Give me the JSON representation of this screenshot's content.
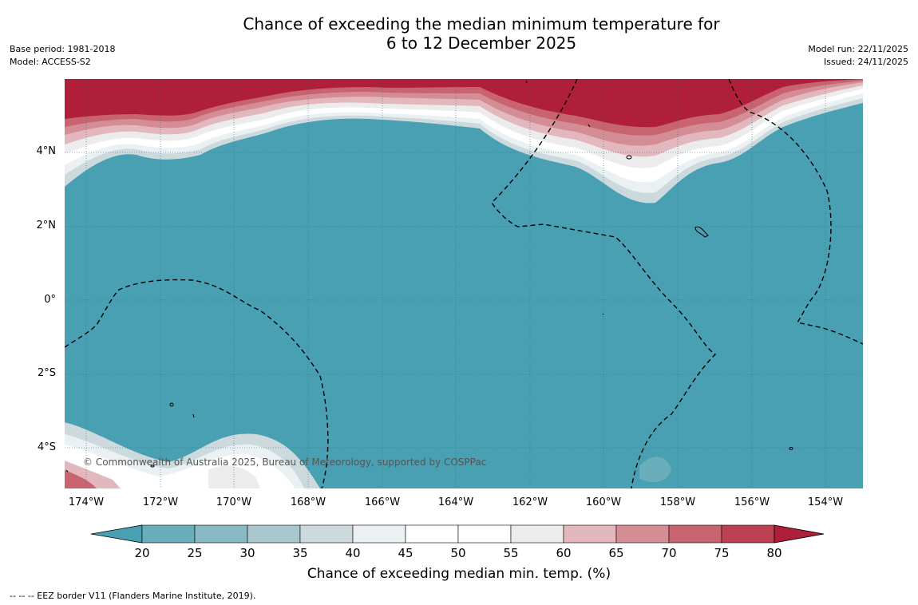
{
  "title": {
    "line1": "Chance of exceeding the median minimum temperature for",
    "line2": "6 to 12 December 2025"
  },
  "meta_left": {
    "base_period": "Base period: 1981-2018",
    "model": "Model: ACCESS-S2"
  },
  "meta_right": {
    "model_run": "Model run: 22/11/2025",
    "issued": "Issued: 24/11/2025"
  },
  "lat_labels": [
    "4°N",
    "2°N",
    "0°",
    "2°S",
    "4°S"
  ],
  "lon_labels": [
    "174°W",
    "172°W",
    "170°W",
    "168°W",
    "166°W",
    "164°W",
    "162°W",
    "160°W",
    "158°W",
    "156°W",
    "154°W"
  ],
  "copyright": "© Commonwealth of Australia 2025, Bureau of Meteorology, supported by COSPPac",
  "colorbar": {
    "ticks": [
      "20",
      "25",
      "30",
      "35",
      "40",
      "45",
      "50",
      "55",
      "60",
      "65",
      "70",
      "75",
      "80"
    ],
    "colors": [
      "#48a0b2",
      "#6aaebc",
      "#88b9c4",
      "#a9c8ce",
      "#cddadd",
      "#ebf1f2",
      "#ffffff",
      "#ffffff",
      "#ececec",
      "#e2b7bd",
      "#d48c95",
      "#c8646f",
      "#bc4253",
      "#b01f3a"
    ],
    "label": "Chance of exceeding median min. temp. (%)"
  },
  "legend_note": "--  --  -- EEZ border V11 (Flanders Marine Institute, 2019).",
  "colors": {
    "ocean_low": "#48a0b2",
    "high": "#b01f3a"
  }
}
